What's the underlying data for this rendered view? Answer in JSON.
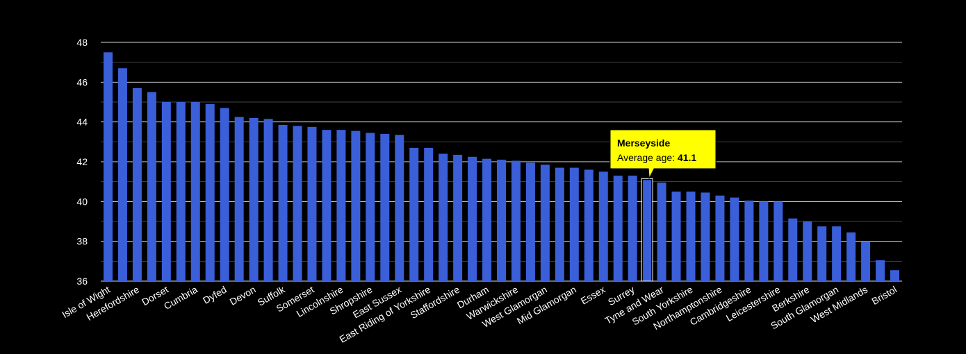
{
  "chart_data": {
    "type": "bar",
    "title": "",
    "xlabel": "",
    "ylabel": "",
    "ylim": [
      36,
      48
    ],
    "yticks": [
      36,
      38,
      40,
      42,
      44,
      46,
      48
    ],
    "grid": true,
    "colors": {
      "background": "#000000",
      "bar": "#3a5fd9",
      "highlight_bar": "#3a5fd9",
      "highlight_outline": "#ffffff",
      "grid": "#ffffff",
      "minor_grid": "#444444",
      "tooltip_bg": "#ffff00",
      "tooltip_border": "#000000"
    },
    "categories": [
      "Isle of Wight",
      "",
      "Herefordshire",
      "",
      "Dorset",
      "",
      "Cumbria",
      "",
      "Dyfed",
      "",
      "Devon",
      "",
      "Suffolk",
      "",
      "Somerset",
      "",
      "Lincolnshire",
      "",
      "Shropshire",
      "",
      "East Sussex",
      "",
      "East Riding of Yorkshire",
      "",
      "Staffordshire",
      "",
      "Durham",
      "",
      "Warwickshire",
      "",
      "West Glamorgan",
      "",
      "Mid Glamorgan",
      "",
      "Essex",
      "",
      "Surrey",
      "",
      "Tyne and Wear",
      "",
      "South Yorkshire",
      "",
      "Northamptonshire",
      "",
      "Cambridgeshire",
      "",
      "Leicestershire",
      "",
      "Berkshire",
      "",
      "South Glamorgan",
      "",
      "West Midlands",
      "",
      "Bristol"
    ],
    "values": [
      47.5,
      46.7,
      45.7,
      45.5,
      45.0,
      45.0,
      45.0,
      44.9,
      44.7,
      44.25,
      44.2,
      44.15,
      43.85,
      43.8,
      43.75,
      43.6,
      43.6,
      43.55,
      43.45,
      43.4,
      43.35,
      42.7,
      42.7,
      42.4,
      42.35,
      42.25,
      42.15,
      42.1,
      42.05,
      41.95,
      41.85,
      41.7,
      41.7,
      41.6,
      41.5,
      41.3,
      41.3,
      41.1,
      40.95,
      40.5,
      40.5,
      40.45,
      40.3,
      40.2,
      40.05,
      40.0,
      40.0,
      39.15,
      39.0,
      38.75,
      38.75,
      38.45,
      38.0,
      37.05,
      36.55
    ],
    "highlight": {
      "index": 37,
      "name": "Merseyside",
      "label": "Average age:",
      "value": "41.1"
    }
  }
}
